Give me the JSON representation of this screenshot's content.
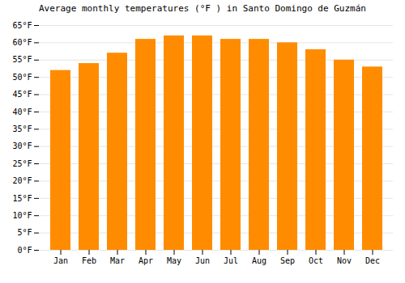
{
  "chart_data": {
    "type": "bar",
    "title": "Average monthly temperatures (°F ) in Santo Domingo de Guzmán",
    "categories": [
      "Jan",
      "Feb",
      "Mar",
      "Apr",
      "May",
      "Jun",
      "Jul",
      "Aug",
      "Sep",
      "Oct",
      "Nov",
      "Dec"
    ],
    "values": [
      52,
      54,
      57,
      61,
      62,
      62,
      61,
      61,
      60,
      58,
      55,
      53
    ],
    "color": "#FF8C00",
    "ylim": [
      0,
      65
    ],
    "yticks": [
      {
        "value": 0,
        "label": "0°F"
      },
      {
        "value": 5,
        "label": "5°F"
      },
      {
        "value": 10,
        "label": "10°F"
      },
      {
        "value": 15,
        "label": "15°F"
      },
      {
        "value": 20,
        "label": "20°F"
      },
      {
        "value": 25,
        "label": "25°F"
      },
      {
        "value": 30,
        "label": "30°F"
      },
      {
        "value": 35,
        "label": "35°F"
      },
      {
        "value": 40,
        "label": "40°F"
      },
      {
        "value": 45,
        "label": "45°F"
      },
      {
        "value": 50,
        "label": "50°F"
      },
      {
        "value": 55,
        "label": "55°F"
      },
      {
        "value": 60,
        "label": "60°F"
      },
      {
        "value": 65,
        "label": "65°F"
      }
    ],
    "grid": true
  }
}
